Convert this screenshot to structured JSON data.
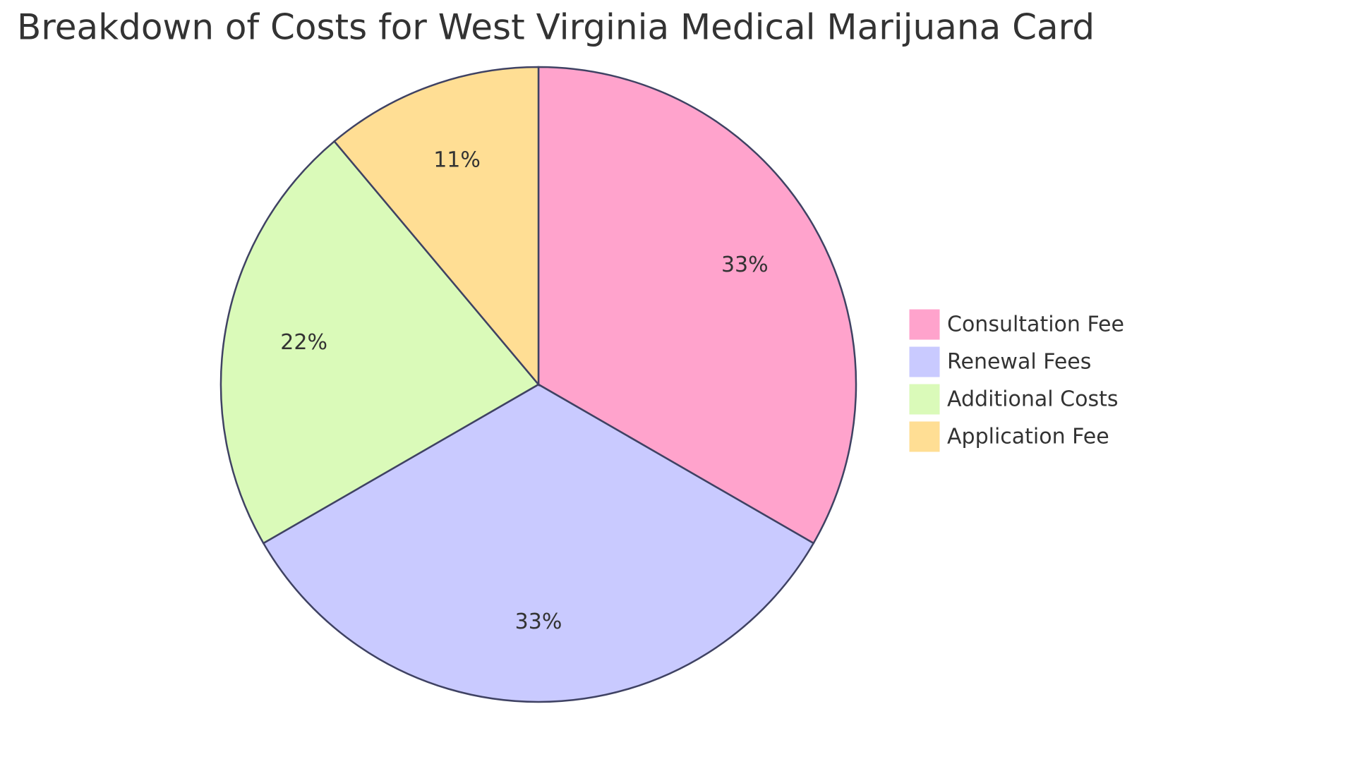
{
  "chart_data": {
    "type": "pie",
    "title": "Breakdown of Costs for West Virginia Medical Marijuana Card",
    "categories": [
      "Consultation Fee",
      "Renewal Fees",
      "Additional Costs",
      "Application Fee"
    ],
    "values": [
      33,
      33,
      22,
      11
    ],
    "value_labels": [
      "33%",
      "33%",
      "22%",
      "11%"
    ],
    "colors": [
      "#ffa3cc",
      "#c9caff",
      "#dafab9",
      "#ffde94"
    ],
    "legend": "right"
  }
}
